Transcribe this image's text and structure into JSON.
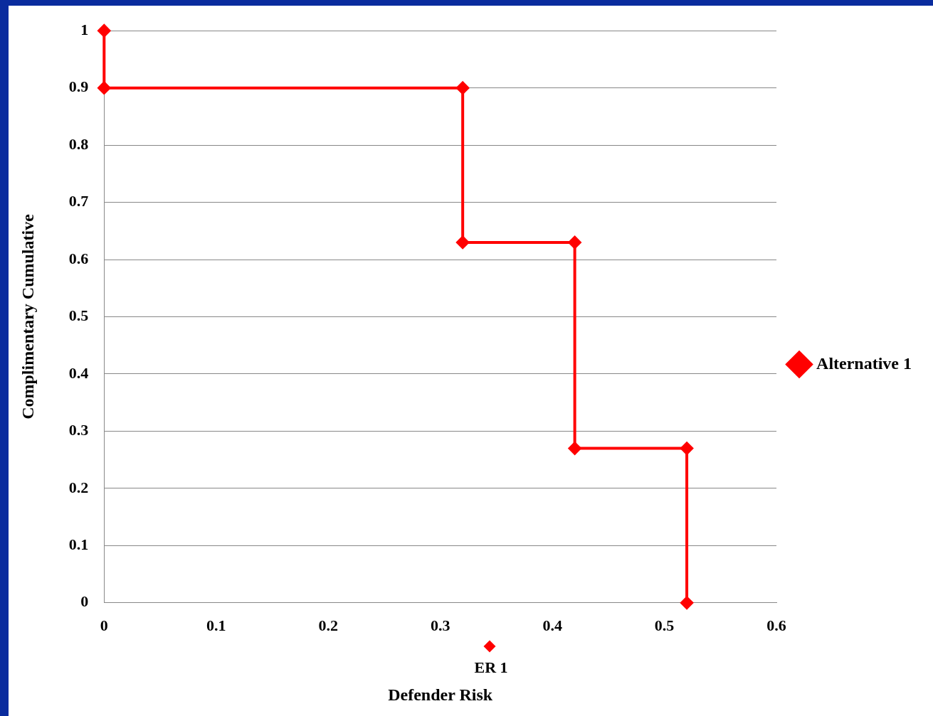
{
  "chart_data": {
    "type": "line",
    "xlabel": "Defender Risk",
    "ylabel": "Complimentary Cumulative",
    "xlim": [
      0,
      0.6
    ],
    "xticks": [
      0,
      0.1,
      0.2,
      0.3,
      0.4,
      0.5,
      0.6
    ],
    "ylim": [
      0,
      1
    ],
    "yticks": [
      0,
      0.1,
      0.2,
      0.3,
      0.4,
      0.5,
      0.6,
      0.7,
      0.8,
      0.9,
      1
    ],
    "grid": "y",
    "legend": "right",
    "marker": "diamond",
    "line_style": "solid",
    "series": [
      {
        "name": "Alternative 1",
        "color": "#ff0000",
        "x": [
          0,
          0,
          0.32,
          0.32,
          0.42,
          0.42,
          0.52,
          0.52
        ],
        "values": [
          1,
          0.9,
          0.9,
          0.63,
          0.63,
          0.27,
          0.27,
          0
        ]
      }
    ],
    "annotations": [
      "ER 1"
    ]
  }
}
